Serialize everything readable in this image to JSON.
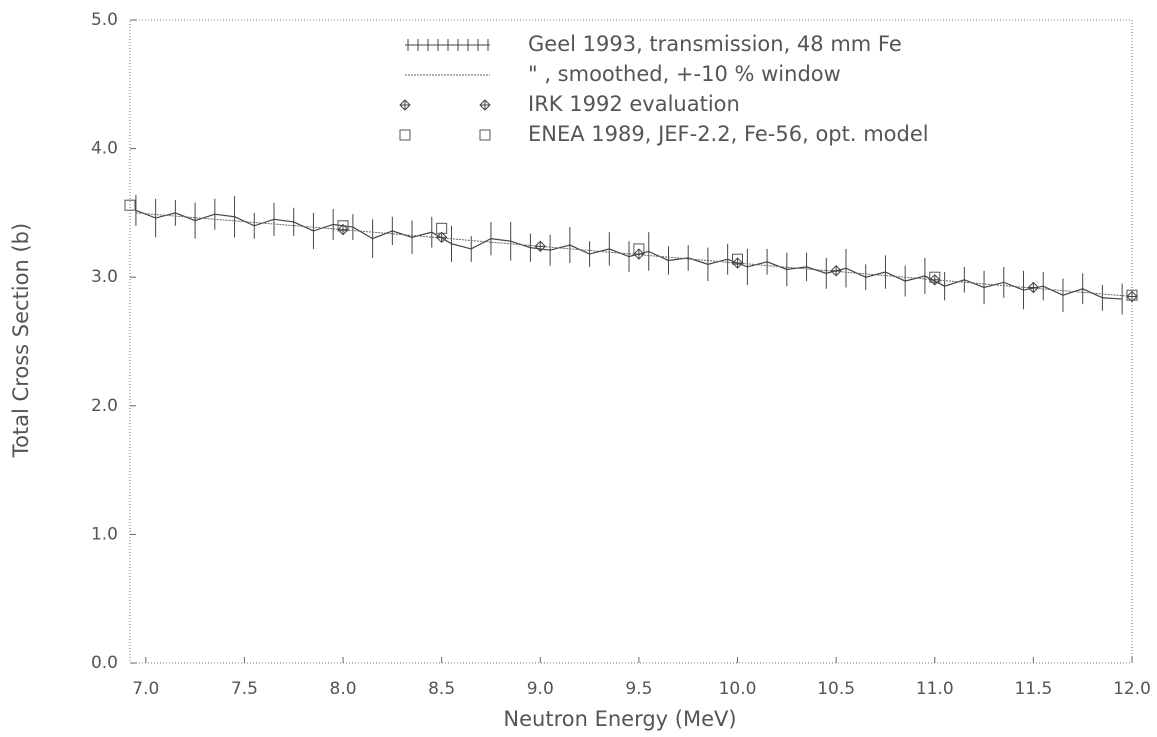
{
  "chart_data": {
    "type": "line",
    "xlabel": "Neutron Energy (MeV)",
    "ylabel": "Total Cross Section (b)",
    "xlim": [
      6.92,
      12.0
    ],
    "ylim": [
      0,
      5
    ],
    "xticks": [
      {
        "value": 7,
        "label": "7.0"
      },
      7.5,
      {
        "value": 8,
        "label": "8.0"
      },
      8.5,
      {
        "value": 9,
        "label": "9.0"
      },
      9.5,
      {
        "value": 10,
        "label": "10.0"
      },
      10.5,
      {
        "value": 11,
        "label": "11.0"
      },
      11.5,
      {
        "value": 12,
        "label": "12.0"
      }
    ],
    "yticks": [
      {
        "value": 0,
        "label": "0.0"
      },
      {
        "value": 1,
        "label": "1.0"
      },
      {
        "value": 2,
        "label": "2.0"
      },
      {
        "value": 3,
        "label": "3.0"
      },
      {
        "value": 4,
        "label": "4.0"
      },
      {
        "value": 5,
        "label": "5.0"
      }
    ],
    "series": [
      {
        "name": "Geel 1993, transmission, 48 mm Fe",
        "marker": "errorbar",
        "color": "#444444",
        "x": [
          6.95,
          7.05,
          7.15,
          7.25,
          7.35,
          7.45,
          7.55,
          7.65,
          7.75,
          7.85,
          7.95,
          8.05,
          8.15,
          8.25,
          8.35,
          8.45,
          8.55,
          8.65,
          8.75,
          8.85,
          8.95,
          9.05,
          9.15,
          9.25,
          9.35,
          9.45,
          9.55,
          9.65,
          9.75,
          9.85,
          9.95,
          10.05,
          10.15,
          10.25,
          10.35,
          10.45,
          10.55,
          10.65,
          10.75,
          10.85,
          10.95,
          11.05,
          11.15,
          11.25,
          11.35,
          11.45,
          11.55,
          11.65,
          11.75,
          11.85,
          11.95
        ],
        "values": [
          3.52,
          3.46,
          3.5,
          3.44,
          3.49,
          3.47,
          3.4,
          3.45,
          3.43,
          3.36,
          3.41,
          3.39,
          3.3,
          3.36,
          3.31,
          3.35,
          3.26,
          3.22,
          3.3,
          3.28,
          3.23,
          3.21,
          3.25,
          3.18,
          3.22,
          3.16,
          3.2,
          3.13,
          3.15,
          3.1,
          3.14,
          3.08,
          3.12,
          3.06,
          3.08,
          3.03,
          3.07,
          3.0,
          3.04,
          2.97,
          3.01,
          2.93,
          2.98,
          2.92,
          2.96,
          2.9,
          2.93,
          2.86,
          2.91,
          2.84,
          2.83
        ],
        "errors": [
          0.12,
          0.15,
          0.1,
          0.14,
          0.12,
          0.16,
          0.1,
          0.13,
          0.11,
          0.14,
          0.12,
          0.1,
          0.15,
          0.11,
          0.13,
          0.12,
          0.14,
          0.1,
          0.13,
          0.15,
          0.11,
          0.12,
          0.14,
          0.1,
          0.13,
          0.12,
          0.15,
          0.11,
          0.1,
          0.13,
          0.12,
          0.14,
          0.1,
          0.13,
          0.11,
          0.12,
          0.15,
          0.1,
          0.13,
          0.12,
          0.14,
          0.11,
          0.1,
          0.13,
          0.12,
          0.15,
          0.11,
          0.13,
          0.12,
          0.1,
          0.12
        ]
      },
      {
        "name": "\"  , smoothed, +-10 % window",
        "marker": "line",
        "color": "#666666",
        "x": [
          6.95,
          8.0,
          9.0,
          10.0,
          11.0,
          12.0
        ],
        "values": [
          3.5,
          3.37,
          3.24,
          3.11,
          2.98,
          2.85
        ]
      },
      {
        "name": "IRK 1992 evaluation",
        "marker": "diamond-cross",
        "color": "#444444",
        "x": [
          8.0,
          8.5,
          9.0,
          9.5,
          10.0,
          10.5,
          11.0,
          11.5,
          12.0
        ],
        "values": [
          3.37,
          3.31,
          3.24,
          3.18,
          3.11,
          3.05,
          2.98,
          2.92,
          2.85
        ]
      },
      {
        "name": "ENEA 1989, JEF-2.2, Fe-56, opt. model",
        "marker": "square",
        "color": "#555555",
        "x": [
          6.92,
          8.0,
          8.5,
          9.5,
          10.0,
          11.0,
          12.0
        ],
        "values": [
          3.56,
          3.4,
          3.38,
          3.22,
          3.14,
          3.0,
          2.86
        ]
      }
    ]
  }
}
